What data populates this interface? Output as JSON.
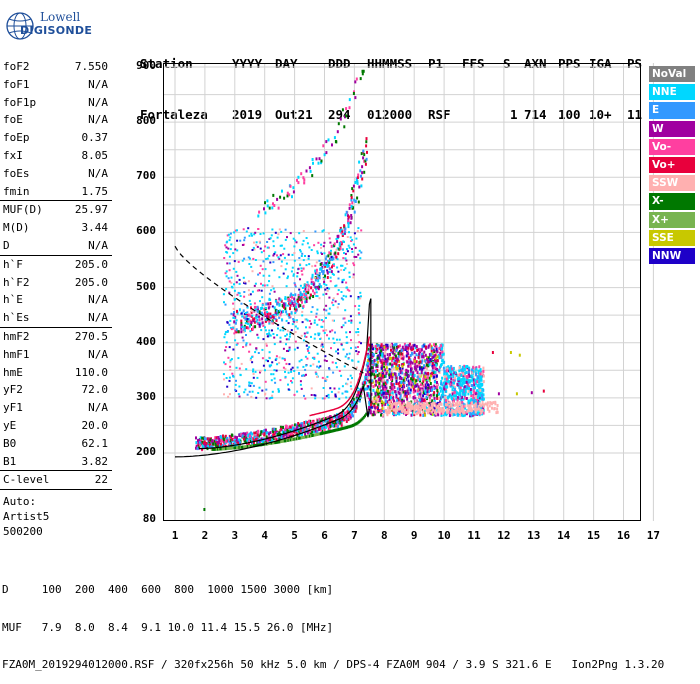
{
  "logo": {
    "line1": "Lowell",
    "line2": "DIGISONDE"
  },
  "header": {
    "labels": [
      "Station",
      "YYYY",
      "DAY",
      "DDD",
      "HHMMSS",
      "P1",
      "FFS",
      "S",
      "AXN",
      "PPS",
      "IGA",
      "PS"
    ],
    "values": [
      "Fortaleza",
      "2019",
      "Out21",
      "294",
      "012000",
      "RSF",
      "",
      "1",
      "714",
      "100",
      "10+",
      "11"
    ]
  },
  "params": {
    "group1": [
      {
        "k": "foF2",
        "v": "7.550"
      },
      {
        "k": "foF1",
        "v": "N/A"
      },
      {
        "k": "foF1p",
        "v": "N/A"
      },
      {
        "k": "foE",
        "v": "N/A"
      },
      {
        "k": "foEp",
        "v": "0.37"
      },
      {
        "k": "fxI",
        "v": "8.05"
      },
      {
        "k": "foEs",
        "v": "N/A"
      },
      {
        "k": "fmin",
        "v": "1.75"
      }
    ],
    "group2": [
      {
        "k": "MUF(D)",
        "v": "25.97"
      },
      {
        "k": "M(D)",
        "v": "3.44"
      },
      {
        "k": "D",
        "v": "N/A"
      }
    ],
    "group3": [
      {
        "k": "h`F",
        "v": "205.0"
      },
      {
        "k": "h`F2",
        "v": "205.0"
      },
      {
        "k": "h`E",
        "v": "N/A"
      },
      {
        "k": "h`Es",
        "v": "N/A"
      }
    ],
    "group4": [
      {
        "k": "hmF2",
        "v": "270.5"
      },
      {
        "k": "hmF1",
        "v": "N/A"
      },
      {
        "k": "hmE",
        "v": "110.0"
      },
      {
        "k": "yF2",
        "v": "72.0"
      },
      {
        "k": "yF1",
        "v": "N/A"
      },
      {
        "k": "yE",
        "v": "20.0"
      },
      {
        "k": "B0",
        "v": "62.1"
      },
      {
        "k": "B1",
        "v": "3.82"
      }
    ],
    "group5": [
      {
        "k": "C-level",
        "v": "22"
      }
    ],
    "autoscaling": [
      "Auto:",
      "Artist5",
      "500200"
    ]
  },
  "legend": [
    {
      "label": "NoVal",
      "color": "#808080"
    },
    {
      "label": "NNE",
      "color": "#00d7ff"
    },
    {
      "label": "E",
      "color": "#3399ff"
    },
    {
      "label": "W",
      "color": "#a000a0"
    },
    {
      "label": "Vo-",
      "color": "#ff3fa0"
    },
    {
      "label": "Vo+",
      "color": "#e8003c"
    },
    {
      "label": "SSW",
      "color": "#ffb0b0"
    },
    {
      "label": "X-",
      "color": "#007800"
    },
    {
      "label": "X+",
      "color": "#78b450"
    },
    {
      "label": "SSE",
      "color": "#c8c800"
    },
    {
      "label": "NNW",
      "color": "#1e00c8"
    }
  ],
  "axes": {
    "x_ticks": [
      "1",
      "2",
      "3",
      "4",
      "5",
      "6",
      "7",
      "8",
      "9",
      "10",
      "11",
      "12",
      "13",
      "14",
      "15",
      "16",
      "17"
    ],
    "y_ticks": [
      "900",
      "800",
      "700",
      "600",
      "500",
      "400",
      "300",
      "200",
      "80"
    ]
  },
  "footer": {
    "line1": "D     100  200  400  600  800  1000 1500 3000 [km]",
    "line2": "MUF   7.9  8.0  8.4  9.1 10.0 11.4 15.5 26.0 [MHz]",
    "line3": "FZA0M_2019294012000.RSF / 320fx256h 50 kHz 5.0 km / DPS-4 FZA0M 904 / 3.9 S 321.6 E   Ion2Png 1.3.20"
  }
}
